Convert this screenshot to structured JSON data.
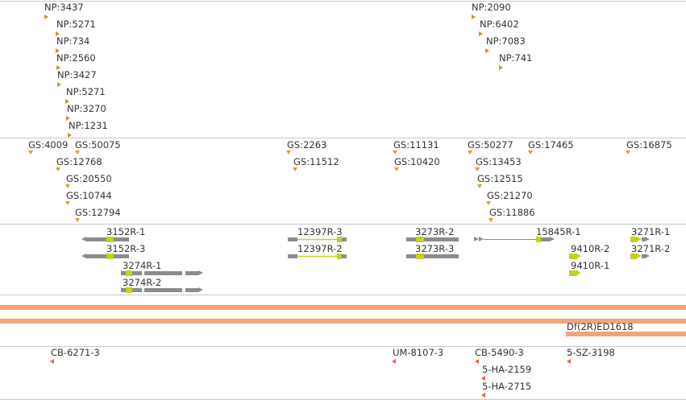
{
  "colors": {
    "np": "#c8941e",
    "gs": "#d9a21f",
    "gene_body": "#8c8c8c",
    "gene_exon": "#c6cf1a",
    "deficiency": "#f2a57a",
    "cb": "#e8623a",
    "track_border": "#c8c8c8",
    "text": "#333333"
  },
  "tracks": {
    "np_insertions": {
      "items": [
        {
          "label": "NP:3437"
        },
        {
          "label": "NP:5271"
        },
        {
          "label": "NP:734"
        },
        {
          "label": "NP:2560"
        },
        {
          "label": "NP:3427"
        },
        {
          "label": "NP:5271"
        },
        {
          "label": "NP:3270"
        },
        {
          "label": "NP:1231"
        },
        {
          "label": "NP:2090"
        },
        {
          "label": "NP:6402"
        },
        {
          "label": "NP:7083"
        },
        {
          "label": "NP:741"
        }
      ]
    },
    "gs_insertions": {
      "items": [
        {
          "label": "GS:4009"
        },
        {
          "label": "GS:50075"
        },
        {
          "label": "GS:12768"
        },
        {
          "label": "GS:20550"
        },
        {
          "label": "GS:10744"
        },
        {
          "label": "GS:12794"
        },
        {
          "label": "GS:2263"
        },
        {
          "label": "GS:11512"
        },
        {
          "label": "GS:11131"
        },
        {
          "label": "GS:10420"
        },
        {
          "label": "GS:50277"
        },
        {
          "label": "GS:13453"
        },
        {
          "label": "GS:12515"
        },
        {
          "label": "GS:21270"
        },
        {
          "label": "GS:11886"
        },
        {
          "label": "GS:17465"
        },
        {
          "label": "GS:16875"
        }
      ]
    },
    "gene_models": {
      "items": [
        {
          "label": "3152R-1"
        },
        {
          "label": "3152R-3"
        },
        {
          "label": "3274R-1"
        },
        {
          "label": "3274R-2"
        },
        {
          "label": "12397R-3"
        },
        {
          "label": "12397R-2"
        },
        {
          "label": "3273R-2"
        },
        {
          "label": "3273R-3"
        },
        {
          "label": "15845R-1"
        },
        {
          "label": "9410R-2"
        },
        {
          "label": "9410R-1"
        },
        {
          "label": "3271R-1"
        },
        {
          "label": "3271R-2"
        }
      ]
    },
    "deficiencies": {
      "items": [
        {
          "label": ""
        },
        {
          "label": ""
        },
        {
          "label": "Df(2R)ED1618"
        }
      ]
    },
    "cb_insertions": {
      "items": [
        {
          "label": "CB-6271-3"
        },
        {
          "label": "UM-8107-3"
        },
        {
          "label": "CB-5490-3"
        },
        {
          "label": "5-SZ-3198"
        },
        {
          "label": "5-HA-2159"
        },
        {
          "label": "5-HA-2715"
        }
      ]
    }
  }
}
